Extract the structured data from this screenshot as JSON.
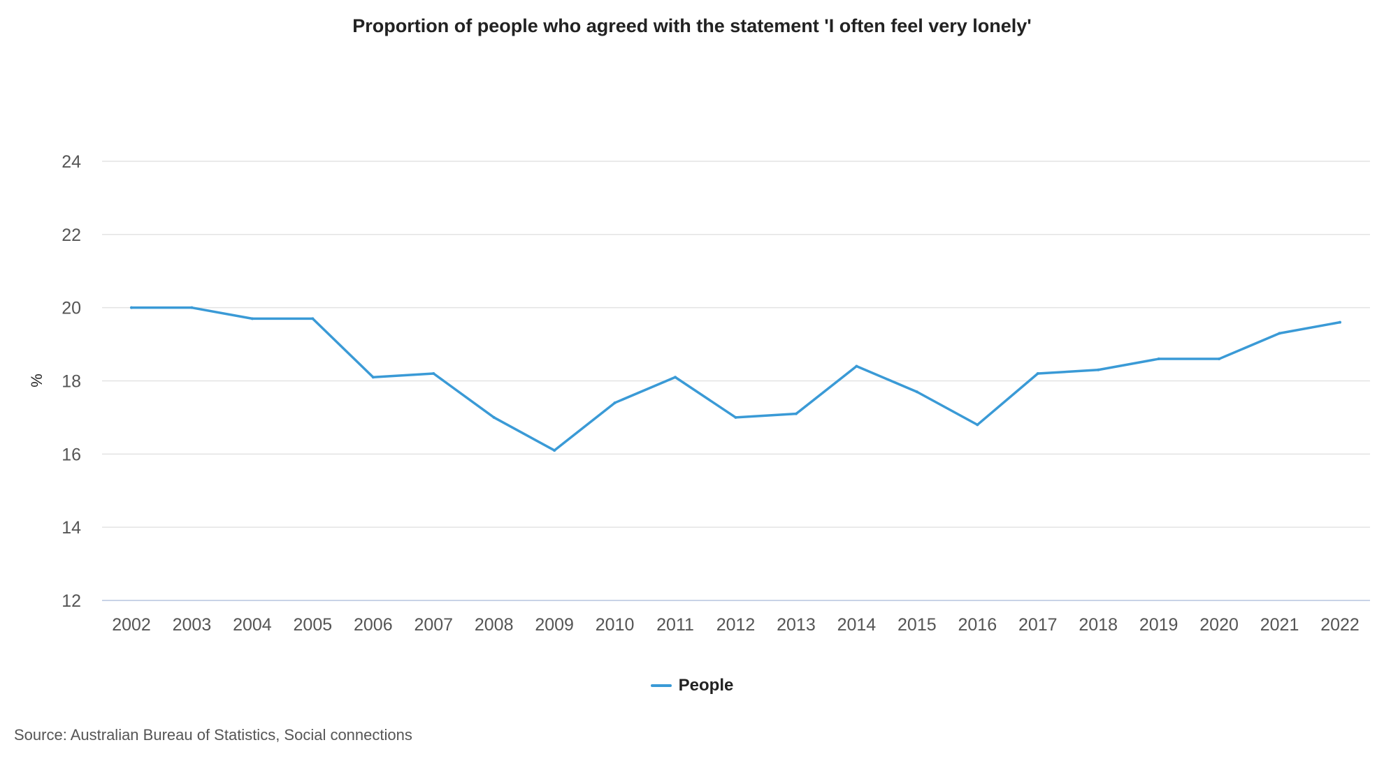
{
  "chart_data": {
    "type": "line",
    "title": "Proportion of people who agreed with the statement 'I often feel very lonely'",
    "xlabel": "",
    "ylabel": "%",
    "ylim": [
      12,
      24
    ],
    "yticks": [
      "12",
      "14",
      "16",
      "18",
      "20",
      "22",
      "24"
    ],
    "categories": [
      "2002",
      "2003",
      "2004",
      "2005",
      "2006",
      "2007",
      "2008",
      "2009",
      "2010",
      "2011",
      "2012",
      "2013",
      "2014",
      "2015",
      "2016",
      "2017",
      "2018",
      "2019",
      "2020",
      "2021",
      "2022"
    ],
    "series": [
      {
        "name": "People",
        "color": "#3a9ad6",
        "values": [
          20.0,
          20.0,
          19.7,
          19.7,
          18.1,
          18.2,
          17.0,
          16.1,
          17.4,
          18.1,
          17.0,
          17.1,
          18.4,
          17.7,
          16.8,
          18.2,
          18.3,
          18.6,
          18.6,
          19.3,
          19.6
        ]
      }
    ],
    "grid": true,
    "legend_position": "bottom-center"
  },
  "source": "Source: Australian Bureau of Statistics, Social connections"
}
